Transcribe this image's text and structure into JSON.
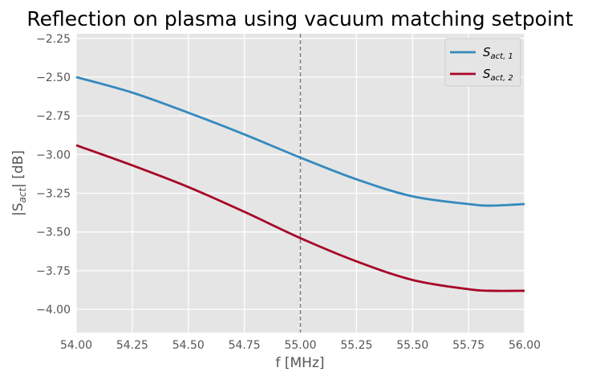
{
  "chart_data": {
    "type": "line",
    "title": "Reflection on plasma using vacuum matching setpoint",
    "xlabel": "f [MHz]",
    "ylabel_main": "|S",
    "ylabel_sub": "act",
    "ylabel_tail": "| [dB]",
    "xlim": [
      54.0,
      56.0
    ],
    "ylim": [
      -4.15,
      -2.22
    ],
    "xticks": [
      "54.00",
      "54.25",
      "54.50",
      "54.75",
      "55.00",
      "55.25",
      "55.50",
      "55.75",
      "56.00"
    ],
    "xtick_values": [
      54.0,
      54.25,
      54.5,
      54.75,
      55.0,
      55.25,
      55.5,
      55.75,
      56.0
    ],
    "yticks": [
      "−2.25",
      "−2.50",
      "−2.75",
      "−3.00",
      "−3.25",
      "−3.50",
      "−3.75",
      "−4.00"
    ],
    "ytick_values": [
      -2.25,
      -2.5,
      -2.75,
      -3.0,
      -3.25,
      -3.5,
      -3.75,
      -4.0
    ],
    "grid": true,
    "legend_position": "top-right",
    "vline": {
      "x": 55.0,
      "style": "dashed",
      "color": "#808080"
    },
    "x": [
      54.0,
      54.25,
      54.5,
      54.75,
      55.0,
      55.25,
      55.5,
      55.75,
      55.85,
      56.0
    ],
    "series": [
      {
        "name": "S",
        "name_sub": "act, 1",
        "color": "#348ABD",
        "values": [
          -2.5,
          -2.6,
          -2.73,
          -2.87,
          -3.02,
          -3.16,
          -3.27,
          -3.32,
          -3.33,
          -3.32
        ]
      },
      {
        "name": "S",
        "name_sub": "act, 2",
        "color": "#A60628",
        "values": [
          -2.94,
          -3.07,
          -3.21,
          -3.37,
          -3.54,
          -3.69,
          -3.81,
          -3.87,
          -3.88,
          -3.88
        ]
      }
    ]
  },
  "colors": {
    "plot_background": "#E5E5E5",
    "grid": "#FFFFFF",
    "text": "#555555"
  }
}
